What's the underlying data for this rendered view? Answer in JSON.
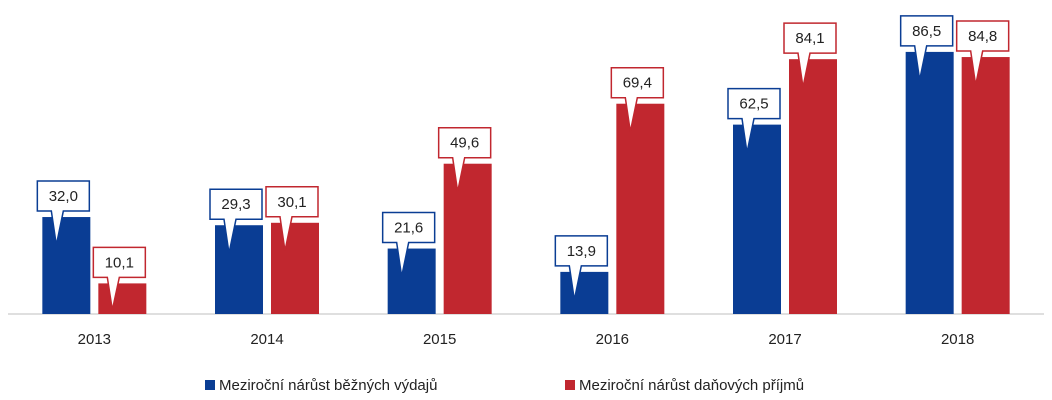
{
  "chart_data": {
    "type": "bar",
    "categories": [
      "2013",
      "2014",
      "2015",
      "2016",
      "2017",
      "2018"
    ],
    "series": [
      {
        "name": "Meziroční nárůst běžných výdajů",
        "color": "#0a3d94",
        "values": [
          32.0,
          29.3,
          21.6,
          13.9,
          62.5,
          86.5
        ],
        "value_labels": [
          "32,0",
          "29,3",
          "21,6",
          "13,9",
          "62,5",
          "86,5"
        ]
      },
      {
        "name": "Meziroční nárůst daňových příjmů",
        "color": "#c1272f",
        "values": [
          10.1,
          30.1,
          49.6,
          69.4,
          84.1,
          84.8
        ],
        "value_labels": [
          "10,1",
          "30,1",
          "49,6",
          "69,4",
          "84,1",
          "84,8"
        ]
      }
    ]
  }
}
